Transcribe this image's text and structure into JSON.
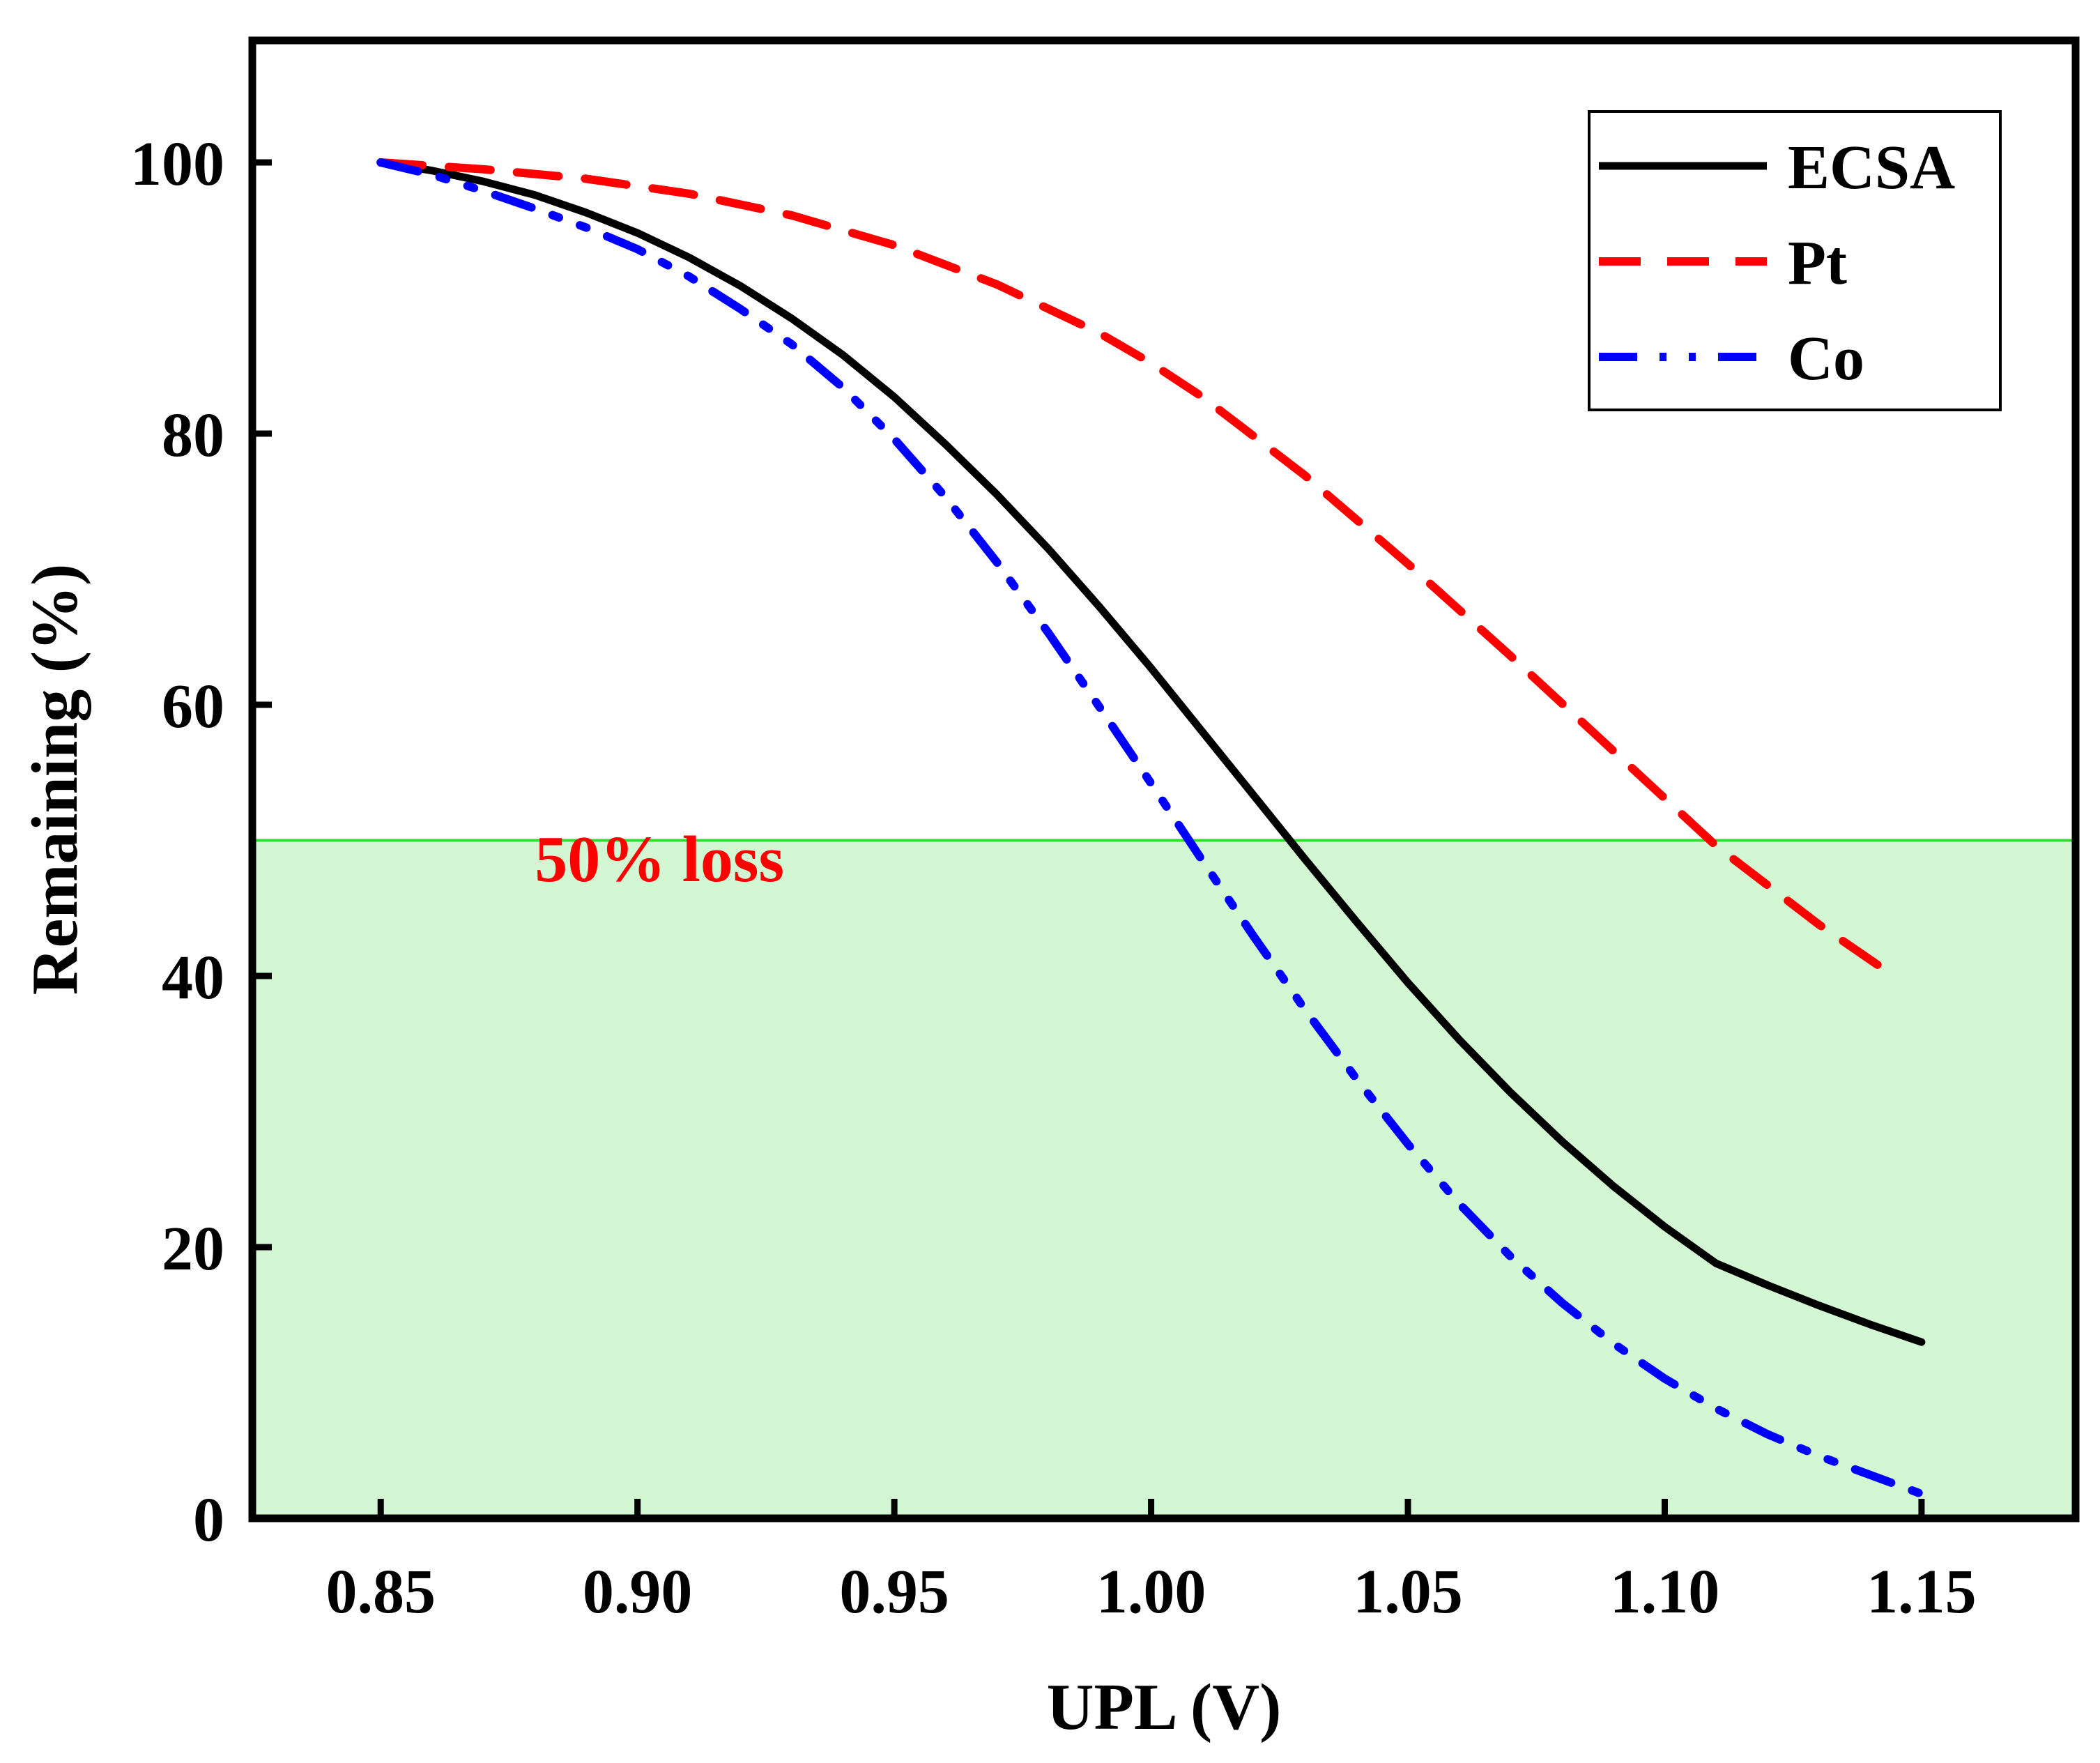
{
  "chart_data": {
    "type": "line",
    "title": "",
    "xlabel": "UPL (V)",
    "ylabel": "Remaining (%)",
    "xlim": [
      0.825,
      1.18
    ],
    "ylim": [
      0,
      109
    ],
    "xticks": [
      0.85,
      0.9,
      0.95,
      1.0,
      1.05,
      1.1,
      1.15
    ],
    "xtick_labels": [
      "0.85",
      "0.90",
      "0.95",
      "1.00",
      "1.05",
      "1.10",
      "1.15"
    ],
    "yticks": [
      0,
      20,
      40,
      60,
      80,
      100
    ],
    "ytick_labels": [
      "0",
      "20",
      "40",
      "60",
      "80",
      "100"
    ],
    "legend_position": "top-right",
    "threshold": {
      "value": 50,
      "label": "50% loss",
      "label_x": 0.88,
      "label_y": 47,
      "line_color": "#33dd33",
      "fill_color": "#d3f7d3",
      "label_color": "#ff0000"
    },
    "series": [
      {
        "name": "ECSA",
        "color": "#000000",
        "style": "solid",
        "x": [
          0.85,
          0.86,
          0.87,
          0.88,
          0.89,
          0.9,
          0.91,
          0.92,
          0.93,
          0.94,
          0.95,
          0.96,
          0.97,
          0.98,
          0.99,
          1.0,
          1.01,
          1.02,
          1.03,
          1.04,
          1.05,
          1.06,
          1.07,
          1.08,
          1.09,
          1.1,
          1.11,
          1.12,
          1.13,
          1.14,
          1.15
        ],
        "values": [
          100,
          99.4,
          98.6,
          97.6,
          96.3,
          94.8,
          93.0,
          90.9,
          88.5,
          85.8,
          82.7,
          79.2,
          75.5,
          71.5,
          67.2,
          62.7,
          58.0,
          53.3,
          48.6,
          44.0,
          39.5,
          35.3,
          31.4,
          27.8,
          24.5,
          21.5,
          18.8,
          17.2,
          15.7,
          14.3,
          13.0
        ]
      },
      {
        "name": "Pt",
        "color": "#ff0000",
        "style": "dashed",
        "x": [
          0.85,
          0.87,
          0.89,
          0.91,
          0.93,
          0.95,
          0.97,
          0.99,
          1.0,
          1.01,
          1.03,
          1.05,
          1.07,
          1.09,
          1.1,
          1.11,
          1.13,
          1.145
        ],
        "values": [
          100,
          99.5,
          98.8,
          97.7,
          96.1,
          93.9,
          91.0,
          87.4,
          85.2,
          82.7,
          76.9,
          70.4,
          63.6,
          56.6,
          53.1,
          49.6,
          43.8,
          39.9
        ]
      },
      {
        "name": "Co",
        "color": "#0000ff",
        "style": "dash-dot-dot",
        "x": [
          0.85,
          0.86,
          0.87,
          0.88,
          0.89,
          0.9,
          0.91,
          0.92,
          0.93,
          0.94,
          0.95,
          0.96,
          0.97,
          0.98,
          0.99,
          1.0,
          1.01,
          1.02,
          1.03,
          1.04,
          1.05,
          1.06,
          1.07,
          1.08,
          1.09,
          1.1,
          1.11,
          1.12,
          1.13,
          1.14,
          1.15
        ],
        "values": [
          100,
          99.1,
          97.9,
          96.6,
          95.2,
          93.6,
          91.6,
          89.2,
          86.6,
          83.4,
          79.6,
          75.3,
          70.5,
          65.3,
          59.8,
          54.2,
          48.5,
          42.9,
          37.5,
          32.4,
          27.6,
          23.2,
          19.3,
          15.9,
          12.9,
          10.3,
          8.1,
          6.2,
          4.6,
          3.2,
          1.8
        ]
      }
    ]
  }
}
